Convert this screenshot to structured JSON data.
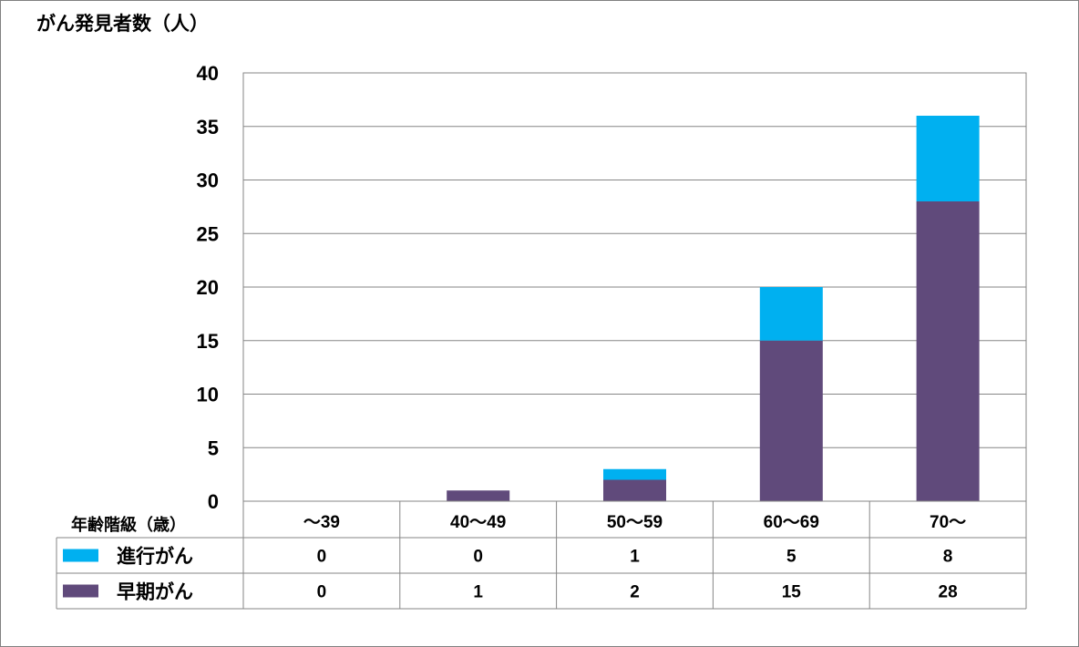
{
  "chart_data": {
    "type": "bar",
    "stacked": true,
    "ylabel": "がん発見者数（人）",
    "xlabel": "年齢階級（歳）",
    "ylim": [
      0,
      40
    ],
    "yticks": [
      0,
      5,
      10,
      15,
      20,
      25,
      30,
      35,
      40
    ],
    "grid": true,
    "legend_placement": "data-table-left",
    "categories": [
      "～39",
      "40～49",
      "50～59",
      "60～69",
      "70～"
    ],
    "series": [
      {
        "name": "早期がん",
        "values": [
          0,
          1,
          2,
          15,
          28
        ],
        "color": "#604A7B"
      },
      {
        "name": "進行がん",
        "values": [
          0,
          0,
          1,
          5,
          8
        ],
        "color": "#00B0F0"
      }
    ]
  }
}
